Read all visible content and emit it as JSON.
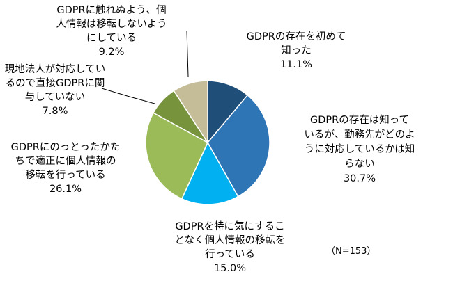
{
  "chart_data": {
    "type": "pie",
    "slices": [
      {
        "label": "GDPRの存在を初めて知った",
        "label_lines": [
          "GDPRの存在を初めて",
          "知った"
        ],
        "value": 11.1,
        "value_text": "11.1%",
        "color": "#1f4e79"
      },
      {
        "label": "GDPRの存在は知っているが、勤務先がどのように対応しているかは知らない",
        "label_lines": [
          "GDPRの存在は知って",
          "いるが、勤務先がどのよ",
          "うに対応しているかは知",
          "らない"
        ],
        "value": 30.7,
        "value_text": "30.7%",
        "color": "#2e75b6"
      },
      {
        "label": "GDPRを特に気にすることなく個人情報の移転を行っている",
        "label_lines": [
          "GDPRを特に気にするこ",
          "となく個人情報の移転を",
          "行っている"
        ],
        "value": 15.0,
        "value_text": "15.0%",
        "color": "#00b0f0"
      },
      {
        "label": "GDPRにのっとったかたちで適正に個人情報の移転を行っている",
        "label_lines": [
          "GDPRにのっとったかた",
          "ちで適正に個人情報の",
          "移転を行っている"
        ],
        "value": 26.1,
        "value_text": "26.1%",
        "color": "#9bbb59"
      },
      {
        "label": "現地法人が対応しているので直接GDPRに関与していない",
        "label_lines": [
          "現地法人が対応してい",
          "るので直接GDPRに関",
          "与していない"
        ],
        "value": 7.8,
        "value_text": "7.8%",
        "color": "#77933c"
      },
      {
        "label": "GDPRに触れぬよう、個人情報は移転しないようにしている",
        "label_lines": [
          "GDPRに触れぬよう、個",
          "人情報は移転しないよう",
          "にしている"
        ],
        "value": 9.2,
        "value_text": "9.2%",
        "color": "#c4bd97"
      }
    ],
    "start_angle_deg": 0,
    "direction": "clockwise",
    "legend": "none",
    "note": "（N=153）"
  }
}
